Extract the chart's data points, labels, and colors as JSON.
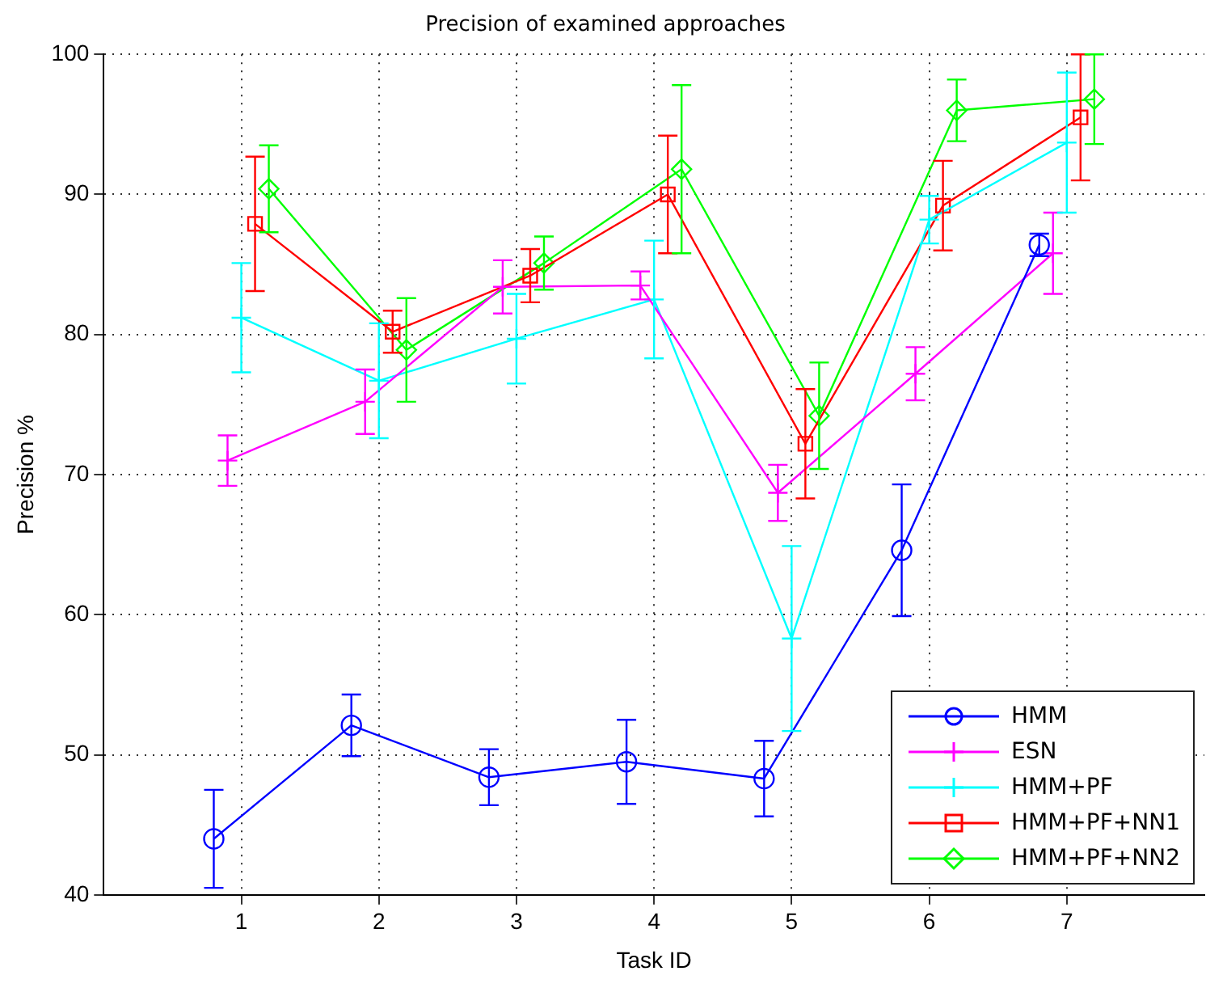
{
  "chart_data": {
    "type": "line",
    "title": "Precision of examined approaches",
    "xlabel": "Task ID",
    "ylabel": "Precision %",
    "xlim": [
      0,
      8
    ],
    "xticks": [
      1,
      2,
      3,
      4,
      5,
      6,
      7
    ],
    "ylim": [
      40,
      100
    ],
    "yticks": [
      40,
      50,
      60,
      70,
      80,
      90,
      100
    ],
    "grid": true,
    "legend": "bottom right",
    "line_style": "solid",
    "series": [
      {
        "name": "HMM",
        "color": "#0000ff",
        "marker": "circle",
        "x": [
          0.8,
          1.8,
          2.8,
          3.8,
          4.8,
          5.8,
          6.8
        ],
        "values": [
          44.0,
          52.1,
          48.4,
          49.5,
          48.3,
          64.6,
          86.4
        ],
        "errors": [
          3.5,
          2.2,
          2.0,
          3.0,
          2.7,
          4.7,
          0.8
        ]
      },
      {
        "name": "ESN",
        "color": "#ff00ff",
        "marker": "cross",
        "x": [
          0.9,
          1.9,
          2.9,
          3.9,
          4.9,
          5.9,
          6.9
        ],
        "values": [
          71.0,
          75.2,
          83.4,
          83.5,
          68.7,
          77.2,
          85.8
        ],
        "errors": [
          1.8,
          2.3,
          1.9,
          1.0,
          2.0,
          1.9,
          2.9
        ]
      },
      {
        "name": "HMM+PF",
        "color": "#00ffff",
        "marker": "cross",
        "x": [
          1,
          2,
          3,
          4,
          5,
          6,
          7
        ],
        "values": [
          81.2,
          76.7,
          79.7,
          82.5,
          58.3,
          88.2,
          93.7
        ],
        "errors": [
          3.9,
          4.1,
          3.2,
          4.2,
          6.6,
          1.7,
          5.0
        ]
      },
      {
        "name": "HMM+PF+NN1",
        "color": "#ff0000",
        "marker": "square",
        "x": [
          1.1,
          2.1,
          3.1,
          4.1,
          5.1,
          6.1,
          7.1
        ],
        "values": [
          87.9,
          80.2,
          84.2,
          90.0,
          72.2,
          89.2,
          95.5
        ],
        "errors": [
          4.8,
          1.5,
          1.9,
          4.2,
          3.9,
          3.2,
          4.5
        ]
      },
      {
        "name": "HMM+PF+NN2",
        "color": "#00ff00",
        "marker": "diamond",
        "x": [
          1.2,
          2.2,
          3.2,
          4.2,
          5.2,
          6.2,
          7.2
        ],
        "values": [
          90.4,
          78.9,
          85.1,
          91.8,
          74.2,
          96.0,
          96.8
        ],
        "errors": [
          3.1,
          3.7,
          1.9,
          6.0,
          3.8,
          2.2,
          3.2
        ]
      }
    ]
  }
}
